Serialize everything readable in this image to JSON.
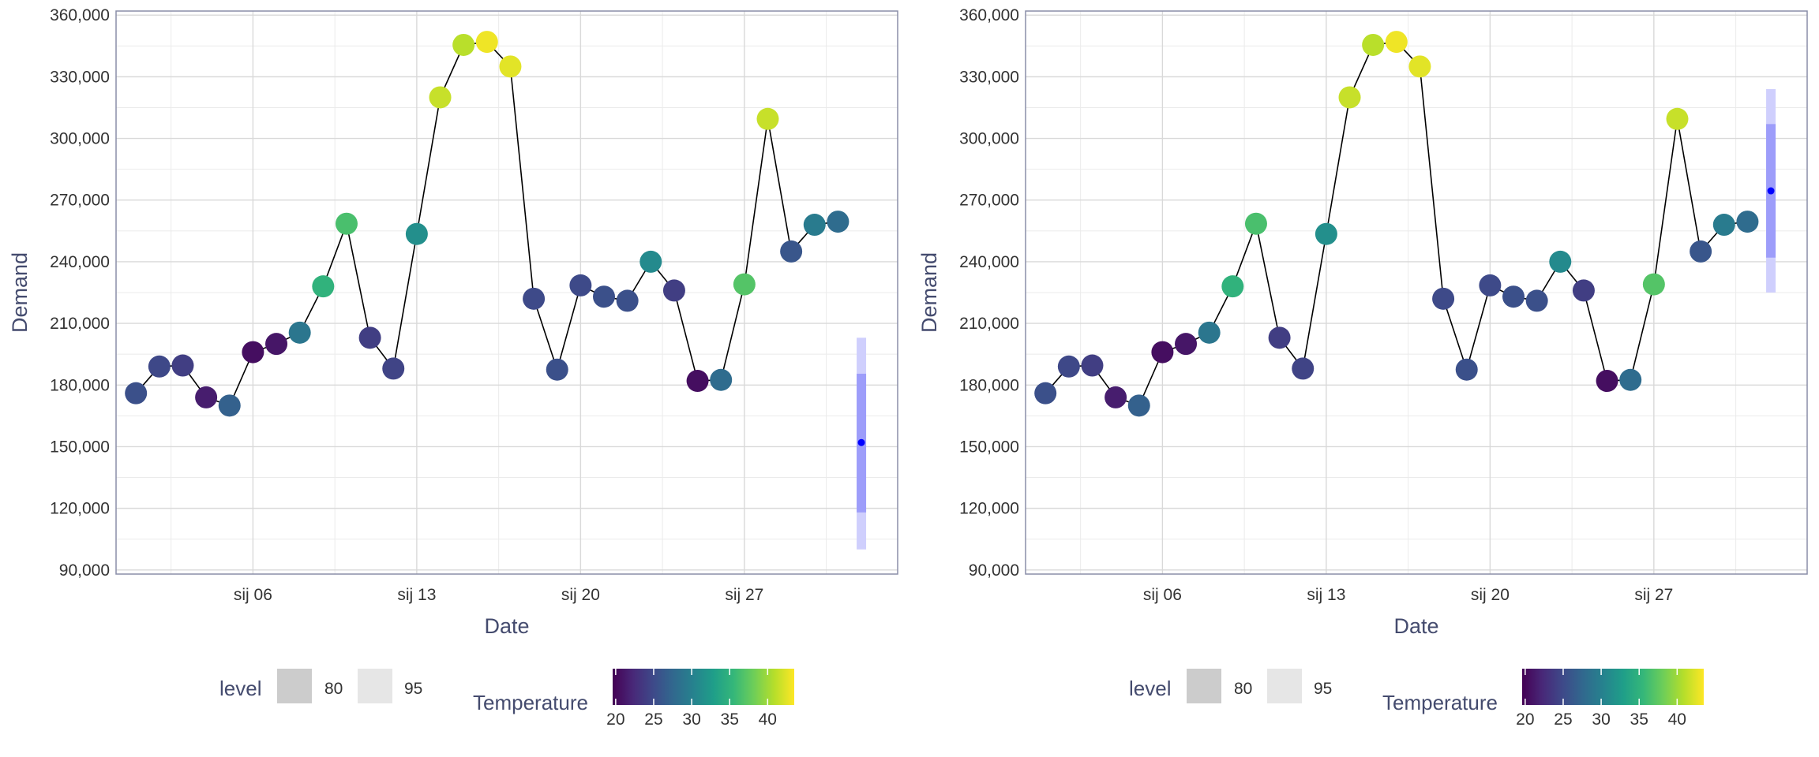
{
  "chart_data": [
    {
      "type": "line",
      "xlabel": "Date",
      "ylabel": "Demand",
      "x_tick_labels": [
        "sij 06",
        "sij 13",
        "sij 20",
        "sij 27"
      ],
      "y_tick_labels": [
        "90,000",
        "120,000",
        "150,000",
        "180,000",
        "210,000",
        "240,000",
        "270,000",
        "300,000",
        "330,000",
        "360,000"
      ],
      "ylim": [
        88000,
        362000
      ],
      "grid": true,
      "series": [
        {
          "x": [
            "2014-01-01",
            "2014-01-02",
            "2014-01-03",
            "2014-01-04",
            "2014-01-05",
            "2014-01-06",
            "2014-01-07",
            "2014-01-08",
            "2014-01-09",
            "2014-01-10",
            "2014-01-11",
            "2014-01-12",
            "2014-01-13",
            "2014-01-14",
            "2014-01-15",
            "2014-01-16",
            "2014-01-17",
            "2014-01-18",
            "2014-01-19",
            "2014-01-20",
            "2014-01-21",
            "2014-01-22",
            "2014-01-23",
            "2014-01-24",
            "2014-01-25",
            "2014-01-26",
            "2014-01-27",
            "2014-01-28",
            "2014-01-29",
            "2014-01-30",
            "2014-01-31"
          ],
          "values": [
            176000,
            189000,
            189500,
            174000,
            170000,
            196000,
            200000,
            205500,
            228000,
            258500,
            203000,
            188000,
            253500,
            320000,
            345500,
            347000,
            335000,
            222000,
            187500,
            228500,
            223000,
            221000,
            240000,
            226000,
            182000,
            182500,
            229000,
            309500,
            245000,
            258000,
            259500
          ],
          "temperature": [
            25.5,
            24.8,
            24.0,
            21.5,
            27.0,
            20.5,
            21.0,
            29.0,
            35.0,
            36.5,
            24.0,
            24.5,
            31.5,
            41.5,
            41.0,
            43.0,
            42.5,
            25.0,
            25.5,
            25.0,
            25.5,
            25.5,
            31.0,
            24.0,
            20.5,
            28.0,
            37.0,
            41.5,
            26.0,
            29.5,
            28.0
          ]
        }
      ],
      "forecast": {
        "x": "2014-02-01",
        "point": 152000,
        "pi80": [
          118000,
          185500
        ],
        "pi95": [
          100000,
          203000
        ]
      }
    },
    {
      "type": "line",
      "xlabel": "Date",
      "ylabel": "Demand",
      "x_tick_labels": [
        "sij 06",
        "sij 13",
        "sij 20",
        "sij 27"
      ],
      "y_tick_labels": [
        "90,000",
        "120,000",
        "150,000",
        "180,000",
        "210,000",
        "240,000",
        "270,000",
        "300,000",
        "330,000",
        "360,000"
      ],
      "ylim": [
        88000,
        362000
      ],
      "grid": true,
      "series": [
        {
          "x": [
            "2014-01-01",
            "2014-01-02",
            "2014-01-03",
            "2014-01-04",
            "2014-01-05",
            "2014-01-06",
            "2014-01-07",
            "2014-01-08",
            "2014-01-09",
            "2014-01-10",
            "2014-01-11",
            "2014-01-12",
            "2014-01-13",
            "2014-01-14",
            "2014-01-15",
            "2014-01-16",
            "2014-01-17",
            "2014-01-18",
            "2014-01-19",
            "2014-01-20",
            "2014-01-21",
            "2014-01-22",
            "2014-01-23",
            "2014-01-24",
            "2014-01-25",
            "2014-01-26",
            "2014-01-27",
            "2014-01-28",
            "2014-01-29",
            "2014-01-30",
            "2014-01-31"
          ],
          "values": [
            176000,
            189000,
            189500,
            174000,
            170000,
            196000,
            200000,
            205500,
            228000,
            258500,
            203000,
            188000,
            253500,
            320000,
            345500,
            347000,
            335000,
            222000,
            187500,
            228500,
            223000,
            221000,
            240000,
            226000,
            182000,
            182500,
            229000,
            309500,
            245000,
            258000,
            259500
          ],
          "temperature": [
            25.5,
            24.8,
            24.0,
            21.5,
            27.0,
            20.5,
            21.0,
            29.0,
            35.0,
            36.5,
            24.0,
            24.5,
            31.5,
            41.5,
            41.0,
            43.0,
            42.5,
            25.0,
            25.5,
            25.0,
            25.5,
            25.5,
            31.0,
            24.0,
            20.5,
            28.0,
            37.0,
            41.5,
            26.0,
            29.5,
            28.0
          ]
        }
      ],
      "forecast": {
        "x": "2014-02-01",
        "point": 274500,
        "pi80": [
          242000,
          307000
        ],
        "pi95": [
          225000,
          324000
        ]
      }
    }
  ],
  "legend": {
    "level_title": "level",
    "level_items": [
      "80",
      "95"
    ],
    "temperature_title": "Temperature",
    "temperature_ticks": [
      "20",
      "25",
      "30",
      "35",
      "40"
    ],
    "temperature_tick_values": [
      20,
      25,
      30,
      35,
      40
    ],
    "temperature_range": [
      19.6,
      43.5
    ]
  },
  "colors": {
    "line": "#000000",
    "forecast_point": "#0000ff",
    "pi80": "#9d9dfa",
    "pi95": "#cfcffd",
    "legend_80": "#cccccc",
    "legend_95": "#e6e6e6",
    "grid_major": "#d9d9d9",
    "grid_minor": "#ebebeb",
    "panel_border": "#8a8ea8",
    "text": "#333333",
    "title_text": "#444b6e",
    "viridis": [
      "#440154",
      "#482878",
      "#3e4989",
      "#31688e",
      "#26828e",
      "#1f9e89",
      "#35b779",
      "#6ece58",
      "#b5de2b",
      "#fde725"
    ]
  }
}
